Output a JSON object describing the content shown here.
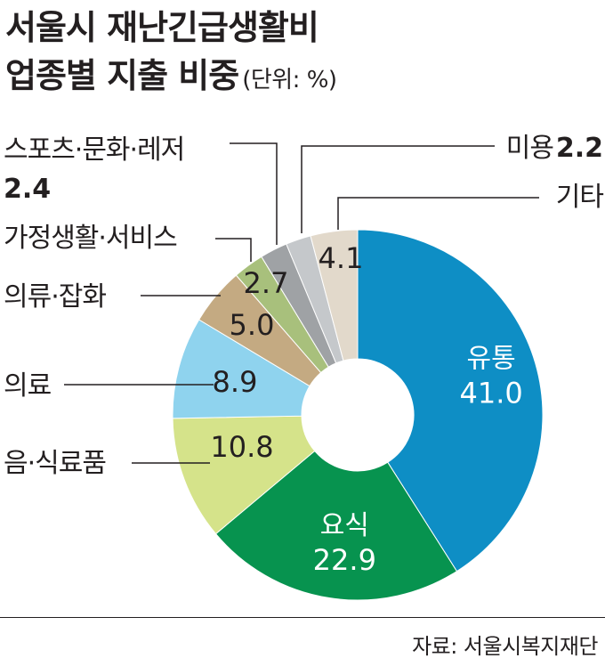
{
  "title_line1": "서울시 재난긴급생활비",
  "title_line2": "업종별 지출 비중",
  "unit": "(단위: %)",
  "source": "자료: 서울시복지재단",
  "chart_data": {
    "type": "pie",
    "categories": [
      "유통",
      "요식",
      "음·식료품",
      "의료",
      "의류·잡화",
      "가정생활·서비스",
      "스포츠·문화·레저",
      "미용",
      "기타"
    ],
    "values": [
      41.0,
      22.9,
      10.8,
      8.9,
      5.0,
      2.7,
      2.4,
      2.2,
      4.1
    ],
    "value_labels": [
      "41.0",
      "22.9",
      "10.8",
      "8.9",
      "5.0",
      "2.7",
      "2.4",
      "2.2",
      "4.1"
    ],
    "colors": [
      "#0e8ec5",
      "#07934f",
      "#d5e38a",
      "#8fd3ee",
      "#c4aa82",
      "#a8c07c",
      "#9fa2a5",
      "#c5c8cb",
      "#e2d9cb"
    ],
    "donut": true,
    "start_angle_deg": 0,
    "direction": "clockwise"
  }
}
